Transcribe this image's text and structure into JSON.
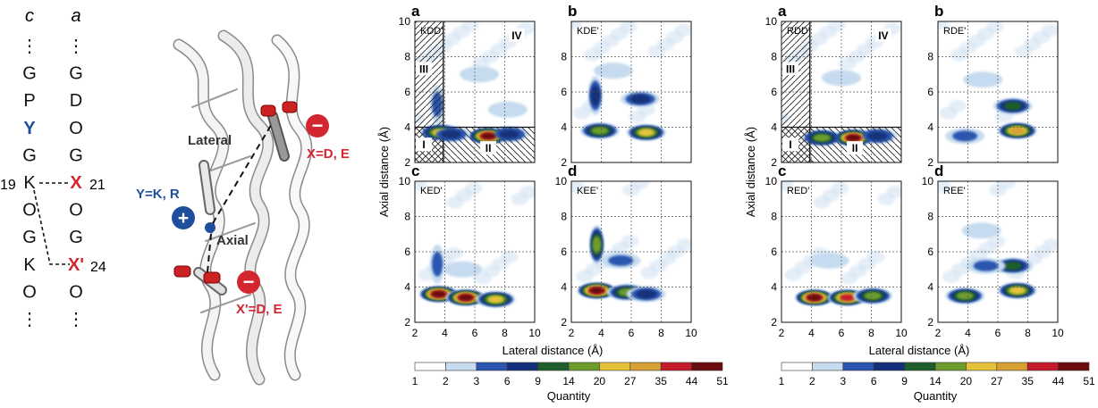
{
  "sequence": {
    "col_c_header": "c",
    "col_a_header": "a",
    "col_c": [
      ":",
      "G",
      "P",
      "Y",
      "G",
      "K",
      "O",
      "G",
      "K",
      "O",
      ":"
    ],
    "col_a": [
      ":",
      "G",
      "D",
      "O",
      "G",
      "X",
      "O",
      "G",
      "X'",
      "O",
      ":"
    ],
    "label_19": "19",
    "label_21": "21",
    "label_24": "24"
  },
  "structure": {
    "lateral": "Lateral",
    "axial": "Axial",
    "y_label": "Y=K, R",
    "x_label": "X=D, E",
    "xp_label": "X'=D, E",
    "plus": "+",
    "minus": "−"
  },
  "colors": {
    "blue_residue": "#1f4e9c",
    "red_residue": "#d22630",
    "scale": [
      "#ffffff",
      "#c6dbef",
      "#2b56b0",
      "#14307a",
      "#1e5e2c",
      "#6d9b2e",
      "#e5c23a",
      "#d6a032",
      "#c41a2a",
      "#6b0d10"
    ]
  },
  "scale_bar": {
    "ticks": [
      "1",
      "2",
      "3",
      "6",
      "9",
      "14",
      "20",
      "27",
      "35",
      "44",
      "51"
    ],
    "label": "Quantity"
  },
  "chart_data": [
    {
      "type": "heatmap",
      "group": "left",
      "ylabel": "Axial distance (Å)",
      "xlabel": "Lateral distance (Å)",
      "xlim": [
        2,
        10
      ],
      "ylim": [
        2,
        10
      ],
      "xticks": [
        "2",
        "4",
        "6",
        "8",
        "10"
      ],
      "yticks": [
        "2",
        "4",
        "6",
        "8",
        "10"
      ],
      "grid": true,
      "panels": [
        {
          "letter": "a",
          "name": "KDD'",
          "regions": [
            "I",
            "II",
            "III",
            "IV"
          ],
          "hotspots": [
            {
              "x": 3.7,
              "y": 3.7,
              "level": 6
            },
            {
              "x": 6.9,
              "y": 3.5,
              "level": 9
            },
            {
              "x": 4.4,
              "y": 3.6,
              "level": 3
            },
            {
              "x": 8.3,
              "y": 3.6,
              "level": 3
            },
            {
              "x": 3.5,
              "y": 5.3,
              "level": 2
            },
            {
              "x": 6.3,
              "y": 7.0,
              "level": 1
            },
            {
              "x": 8.2,
              "y": 5.0,
              "level": 1
            }
          ]
        },
        {
          "letter": "b",
          "name": "KDE'",
          "regions": [],
          "hotspots": [
            {
              "x": 3.9,
              "y": 3.8,
              "level": 5
            },
            {
              "x": 7.0,
              "y": 3.7,
              "level": 6
            },
            {
              "x": 3.6,
              "y": 5.8,
              "level": 3
            },
            {
              "x": 6.6,
              "y": 5.6,
              "level": 3
            },
            {
              "x": 4.8,
              "y": 7.2,
              "level": 1
            }
          ]
        },
        {
          "letter": "c",
          "name": "KED'",
          "regions": [],
          "hotspots": [
            {
              "x": 3.6,
              "y": 3.6,
              "level": 9
            },
            {
              "x": 5.4,
              "y": 3.4,
              "level": 9
            },
            {
              "x": 7.4,
              "y": 3.3,
              "level": 6
            },
            {
              "x": 3.5,
              "y": 5.3,
              "level": 2
            },
            {
              "x": 5.2,
              "y": 5.0,
              "level": 1
            }
          ]
        },
        {
          "letter": "d",
          "name": "KEE'",
          "regions": [],
          "hotspots": [
            {
              "x": 3.7,
              "y": 3.8,
              "level": 9
            },
            {
              "x": 3.7,
              "y": 6.4,
              "level": 5
            },
            {
              "x": 5.7,
              "y": 3.7,
              "level": 5
            },
            {
              "x": 7.0,
              "y": 3.6,
              "level": 3
            },
            {
              "x": 5.3,
              "y": 5.5,
              "level": 2
            }
          ]
        }
      ]
    },
    {
      "type": "heatmap",
      "group": "right",
      "ylabel": "Axial distance (Å)",
      "xlabel": "Lateral distance (Å)",
      "xlim": [
        2,
        10
      ],
      "ylim": [
        2,
        10
      ],
      "xticks": [
        "2",
        "4",
        "6",
        "8",
        "10"
      ],
      "yticks": [
        "2",
        "4",
        "6",
        "8",
        "10"
      ],
      "grid": true,
      "panels": [
        {
          "letter": "a",
          "name": "RDD'",
          "regions": [
            "I",
            "II",
            "III",
            "IV"
          ],
          "hotspots": [
            {
              "x": 6.8,
              "y": 3.4,
              "level": 9
            },
            {
              "x": 4.7,
              "y": 3.4,
              "level": 5
            },
            {
              "x": 8.4,
              "y": 3.5,
              "level": 3
            },
            {
              "x": 6.0,
              "y": 6.8,
              "level": 1
            }
          ]
        },
        {
          "letter": "b",
          "name": "RDE'",
          "regions": [],
          "hotspots": [
            {
              "x": 7.3,
              "y": 3.8,
              "level": 7
            },
            {
              "x": 7.0,
              "y": 5.2,
              "level": 4
            },
            {
              "x": 3.8,
              "y": 3.5,
              "level": 2
            },
            {
              "x": 5.0,
              "y": 6.7,
              "level": 1
            }
          ]
        },
        {
          "letter": "c",
          "name": "RED'",
          "regions": [],
          "hotspots": [
            {
              "x": 4.2,
              "y": 3.4,
              "level": 9
            },
            {
              "x": 6.4,
              "y": 3.4,
              "level": 8
            },
            {
              "x": 8.1,
              "y": 3.5,
              "level": 5
            },
            {
              "x": 5.2,
              "y": 5.5,
              "level": 1
            }
          ]
        },
        {
          "letter": "d",
          "name": "REE'",
          "regions": [],
          "hotspots": [
            {
              "x": 7.3,
              "y": 3.8,
              "level": 6
            },
            {
              "x": 7.0,
              "y": 5.2,
              "level": 4
            },
            {
              "x": 3.8,
              "y": 3.5,
              "level": 5
            },
            {
              "x": 5.2,
              "y": 5.2,
              "level": 2
            },
            {
              "x": 4.9,
              "y": 7.2,
              "level": 1
            }
          ]
        }
      ]
    }
  ]
}
